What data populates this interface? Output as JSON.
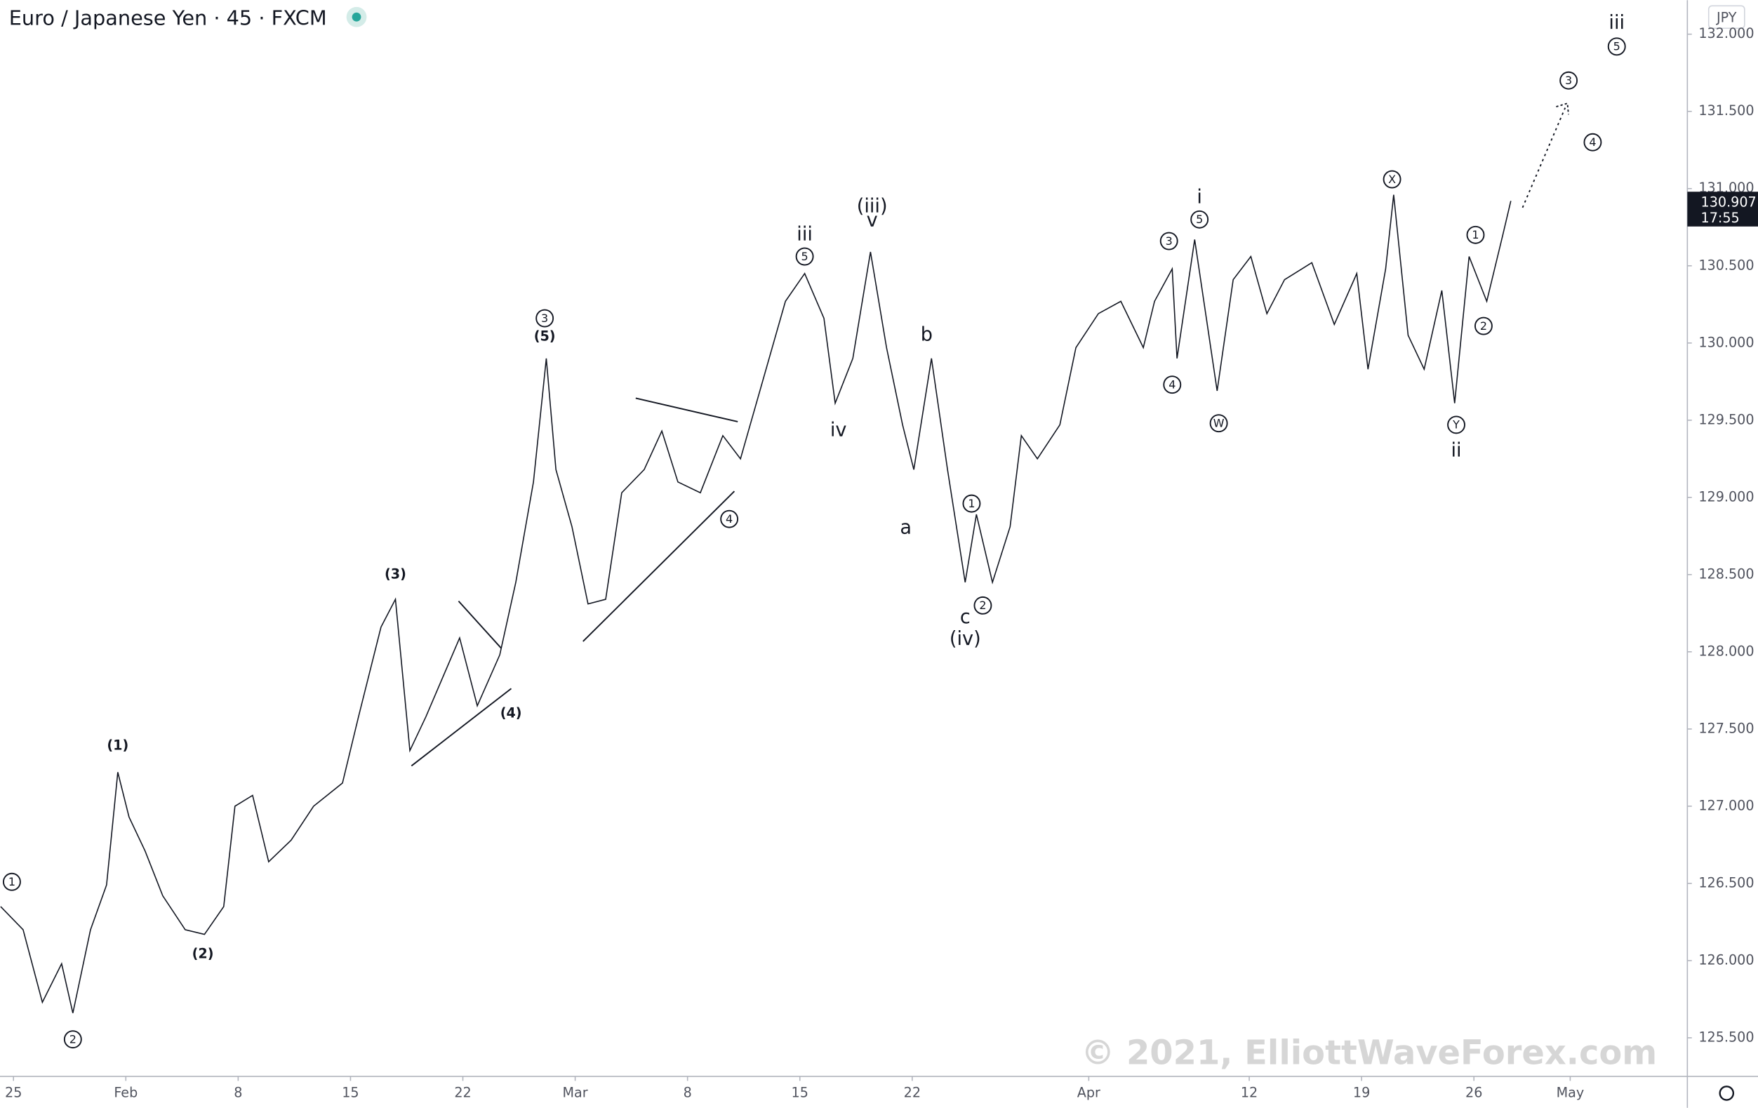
{
  "chart_data": {
    "type": "line",
    "title": "Euro / Japanese Yen · 45 · FXCM",
    "currency": "JPY",
    "watermark": "© 2021, ElliottWaveForex.com",
    "last_price": 130.907,
    "last_price_label": "130.907",
    "countdown": "17:55",
    "color": "#131722",
    "xlim": [
      24.16,
      129.3
    ],
    "ylim": [
      125.25,
      132.22
    ],
    "xticks": [
      {
        "value": 25,
        "label": "25"
      },
      {
        "value": 32,
        "label": "Feb"
      },
      {
        "value": 39,
        "label": "8"
      },
      {
        "value": 46,
        "label": "15"
      },
      {
        "value": 53,
        "label": "22"
      },
      {
        "value": 60,
        "label": "Mar"
      },
      {
        "value": 67,
        "label": "8"
      },
      {
        "value": 74,
        "label": "15"
      },
      {
        "value": 81,
        "label": "22"
      },
      {
        "value": 92,
        "label": "Apr"
      },
      {
        "value": 102,
        "label": "12"
      },
      {
        "value": 109,
        "label": "19"
      },
      {
        "value": 116,
        "label": "26"
      },
      {
        "value": 122,
        "label": "May"
      }
    ],
    "yticks": [
      {
        "value": 125.5,
        "label": "125.500"
      },
      {
        "value": 126,
        "label": "126.000"
      },
      {
        "value": 126.5,
        "label": "126.500"
      },
      {
        "value": 127,
        "label": "127.000"
      },
      {
        "value": 127.5,
        "label": "127.500"
      },
      {
        "value": 128,
        "label": "128.000"
      },
      {
        "value": 128.5,
        "label": "128.500"
      },
      {
        "value": 129,
        "label": "129.000"
      },
      {
        "value": 129.5,
        "label": "129.500"
      },
      {
        "value": 130,
        "label": "130.000"
      },
      {
        "value": 130.5,
        "label": "130.500"
      },
      {
        "value": 131,
        "label": "131.000"
      },
      {
        "value": 131.5,
        "label": "131.500"
      },
      {
        "value": 132,
        "label": "132.000"
      }
    ],
    "x": [
      24.2,
      25.6,
      26.8,
      28.0,
      28.7,
      29.8,
      30.8,
      31.5,
      32.2,
      33.2,
      34.3,
      35.7,
      36.9,
      38.1,
      38.8,
      39.9,
      40.9,
      42.3,
      43.7,
      45.5,
      46.5,
      47.9,
      48.8,
      49.7,
      50.7,
      52.8,
      53.9,
      55.3,
      56.3,
      57.4,
      58.2,
      58.8,
      59.8,
      60.8,
      61.9,
      62.9,
      64.3,
      65.4,
      66.4,
      67.8,
      69.2,
      70.3,
      71.7,
      73.1,
      74.3,
      75.5,
      76.2,
      77.3,
      78.4,
      79.4,
      80.4,
      81.1,
      82.2,
      83.2,
      84.3,
      85.0,
      86.0,
      87.1,
      87.8,
      88.8,
      90.2,
      91.2,
      92.6,
      94.0,
      95.4,
      96.1,
      97.2,
      97.5,
      98.6,
      100.0,
      101.0,
      102.1,
      103.1,
      104.2,
      105.9,
      107.3,
      108.7,
      109.4,
      110.5,
      111.0,
      111.9,
      112.9,
      114.0,
      114.8,
      115.7,
      116.8,
      117.8,
      118.3
    ],
    "series": [
      {
        "name": "EUR/JPY",
        "color": "#131722",
        "values": [
          126.35,
          126.2,
          125.73,
          125.98,
          125.66,
          126.2,
          126.49,
          127.22,
          126.93,
          126.71,
          126.42,
          126.2,
          126.17,
          126.35,
          127.0,
          127.07,
          126.64,
          126.78,
          127.0,
          127.15,
          127.58,
          128.16,
          128.34,
          127.36,
          127.58,
          128.09,
          127.65,
          127.98,
          128.45,
          129.1,
          129.9,
          129.18,
          128.81,
          128.31,
          128.34,
          129.03,
          129.18,
          129.43,
          129.1,
          129.03,
          129.4,
          129.25,
          129.76,
          130.27,
          130.45,
          130.16,
          129.61,
          129.9,
          130.59,
          129.97,
          129.47,
          129.18,
          129.9,
          129.18,
          128.45,
          128.89,
          128.45,
          128.81,
          129.4,
          129.25,
          129.47,
          129.97,
          130.19,
          130.27,
          129.97,
          130.27,
          130.48,
          129.9,
          130.67,
          129.69,
          130.41,
          130.56,
          130.19,
          130.41,
          130.52,
          130.12,
          130.45,
          129.83,
          130.48,
          130.96,
          130.05,
          129.83,
          130.34,
          129.61,
          130.56,
          130.27,
          130.7,
          130.92
        ]
      }
    ],
    "annotations": [
      {
        "text": "1",
        "circled": true,
        "x": 24.9,
        "y": 126.51
      },
      {
        "text": "2",
        "circled": true,
        "x": 28.7,
        "y": 125.49
      },
      {
        "text": "(1)",
        "x": 31.5,
        "y": 127.39
      },
      {
        "text": "(2)",
        "x": 36.8,
        "y": 126.04
      },
      {
        "text": "(3)",
        "x": 48.8,
        "y": 128.5
      },
      {
        "text": "(4)",
        "x": 56.0,
        "y": 127.6
      },
      {
        "text": "3",
        "circled": true,
        "x": 58.1,
        "y": 130.16
      },
      {
        "text": "(5)",
        "x": 58.1,
        "y": 130.04
      },
      {
        "text": "4",
        "circled": true,
        "x": 69.6,
        "y": 128.86
      },
      {
        "text": "iii",
        "x": 74.3,
        "y": 130.7
      },
      {
        "text": "5",
        "circled": true,
        "x": 74.3,
        "y": 130.56
      },
      {
        "text": "iv",
        "x": 76.4,
        "y": 129.43
      },
      {
        "text": "(iii)",
        "x": 78.5,
        "y": 130.88
      },
      {
        "text": "v",
        "x": 78.5,
        "y": 130.79
      },
      {
        "text": "a",
        "x": 80.6,
        "y": 128.8
      },
      {
        "text": "b",
        "x": 81.9,
        "y": 130.05
      },
      {
        "text": "1",
        "circled": true,
        "x": 84.7,
        "y": 128.96
      },
      {
        "text": "2",
        "circled": true,
        "x": 85.4,
        "y": 128.3
      },
      {
        "text": "c",
        "x": 84.3,
        "y": 128.22
      },
      {
        "text": "(iv)",
        "x": 84.3,
        "y": 128.08
      },
      {
        "text": "3",
        "circled": true,
        "x": 97.0,
        "y": 130.66
      },
      {
        "text": "4",
        "circled": true,
        "x": 97.2,
        "y": 129.73
      },
      {
        "text": "i",
        "x": 98.9,
        "y": 130.94
      },
      {
        "text": "5",
        "circled": true,
        "x": 98.9,
        "y": 130.8
      },
      {
        "text": "W",
        "circled": true,
        "x": 100.1,
        "y": 129.48
      },
      {
        "text": "X",
        "circled": true,
        "x": 110.9,
        "y": 131.06
      },
      {
        "text": "Y",
        "circled": true,
        "x": 114.9,
        "y": 129.47
      },
      {
        "text": "ii",
        "x": 114.9,
        "y": 129.3
      },
      {
        "text": "1",
        "circled": true,
        "x": 116.1,
        "y": 130.7
      },
      {
        "text": "2",
        "circled": true,
        "x": 116.6,
        "y": 130.11
      },
      {
        "text": "3",
        "circled": true,
        "x": 121.9,
        "y": 131.7
      },
      {
        "text": "4",
        "circled": true,
        "x": 123.4,
        "y": 131.3
      },
      {
        "text": "iii",
        "x": 124.9,
        "y": 132.07
      },
      {
        "text": "5",
        "circled": true,
        "x": 124.9,
        "y": 131.92
      }
    ]
  }
}
